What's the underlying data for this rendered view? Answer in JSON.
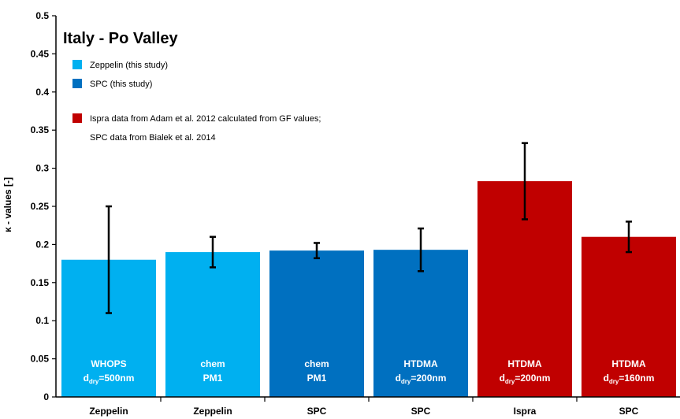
{
  "chart_data": {
    "type": "bar",
    "title": "Italy - Po Valley",
    "ylabel": "κ - values [-]",
    "xlabel": "",
    "ylim": [
      0,
      0.5
    ],
    "yticks": [
      "0",
      "0.05",
      "0.1",
      "0.15",
      "0.2",
      "0.25",
      "0.3",
      "0.35",
      "0.4",
      "0.45",
      "0.5"
    ],
    "grid": false,
    "legend_position": "top-left",
    "categories": [
      "Zeppelin",
      "Zeppelin",
      "SPC",
      "SPC",
      "Ispra",
      "SPC"
    ],
    "bars": [
      {
        "category": "Zeppelin",
        "value": 0.18,
        "err_low": 0.11,
        "err_high": 0.25,
        "color": "#00B0F0",
        "label_line1": "WHOPS",
        "label_line2": {
          "prefix": "d",
          "sub": "dry",
          "suffix": "=500nm"
        }
      },
      {
        "category": "Zeppelin",
        "value": 0.19,
        "err_low": 0.17,
        "err_high": 0.21,
        "color": "#00B0F0",
        "label_line1": "chem",
        "label_line2": {
          "prefix": "PM1",
          "sub": "",
          "suffix": ""
        }
      },
      {
        "category": "SPC",
        "value": 0.192,
        "err_low": 0.182,
        "err_high": 0.202,
        "color": "#0070C0",
        "label_line1": "chem",
        "label_line2": {
          "prefix": "PM1",
          "sub": "",
          "suffix": ""
        }
      },
      {
        "category": "SPC",
        "value": 0.193,
        "err_low": 0.165,
        "err_high": 0.221,
        "color": "#0070C0",
        "label_line1": "HTDMA",
        "label_line2": {
          "prefix": "d",
          "sub": "dry",
          "suffix": "=200nm"
        }
      },
      {
        "category": "Ispra",
        "value": 0.283,
        "err_low": 0.233,
        "err_high": 0.333,
        "color": "#C00000",
        "label_line1": "HTDMA",
        "label_line2": {
          "prefix": "d",
          "sub": "dry",
          "suffix": "=200nm"
        }
      },
      {
        "category": "SPC",
        "value": 0.21,
        "err_low": 0.19,
        "err_high": 0.23,
        "color": "#C00000",
        "label_line1": "HTDMA",
        "label_line2": {
          "prefix": "d",
          "sub": "dry",
          "suffix": "=160nm"
        }
      }
    ],
    "legend": [
      {
        "color": "#00B0F0",
        "lines": [
          "Zeppelin (this study)"
        ]
      },
      {
        "color": "#0070C0",
        "lines": [
          "SPC  (this study)"
        ]
      },
      {
        "color": "#C00000",
        "lines": [
          "Ispra data from Adam et al. 2012 calculated from GF values;",
          "SPC data from Bialek et al. 2014"
        ]
      }
    ]
  }
}
